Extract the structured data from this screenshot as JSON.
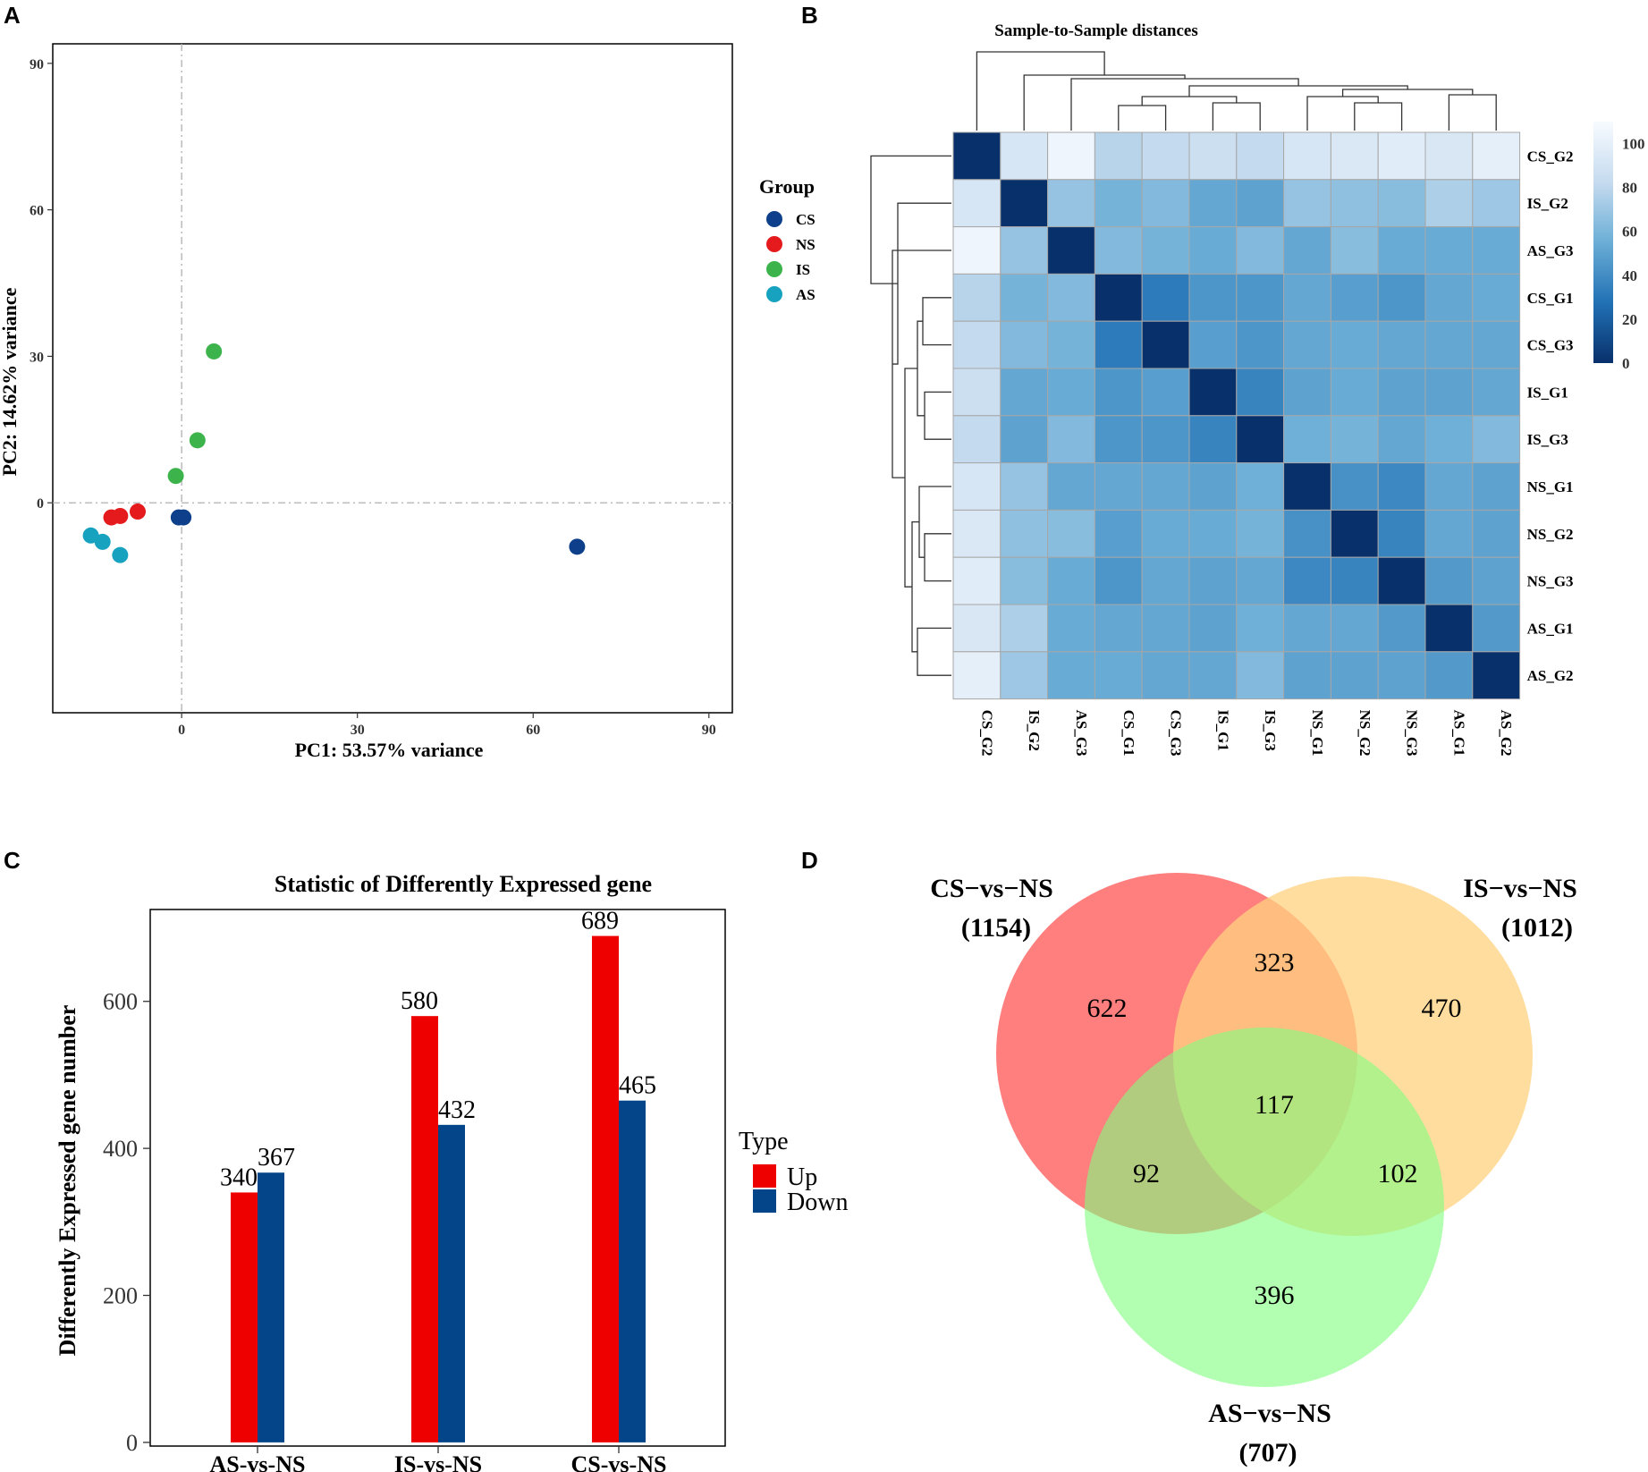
{
  "panels": {
    "a": "A",
    "b": "B",
    "c": "C",
    "d": "D"
  },
  "chart_data": [
    {
      "type": "scatter",
      "panel": "A",
      "title": "",
      "xlabel": "PC1: 53.57% variance",
      "ylabel": "PC2: 14.62% variance",
      "xlim": [
        -22,
        94
      ],
      "ylim": [
        -43,
        94
      ],
      "xticks": [
        0,
        30,
        60,
        90
      ],
      "yticks": [
        0,
        30,
        60,
        90
      ],
      "reference_lines": {
        "x": 0,
        "y": 0
      },
      "legend_title": "Group",
      "groups": [
        {
          "name": "CS",
          "color": "#0d3f8a",
          "points": [
            [
              -0.5,
              -3
            ],
            [
              0.3,
              -3
            ],
            [
              67.5,
              -9
            ]
          ]
        },
        {
          "name": "NS",
          "color": "#e41a1c",
          "points": [
            [
              -12,
              -3
            ],
            [
              -10.5,
              -2.7
            ],
            [
              -7.5,
              -1.8
            ]
          ]
        },
        {
          "name": "IS",
          "color": "#3cb44b",
          "points": [
            [
              5.5,
              31
            ],
            [
              2.7,
              12.8
            ],
            [
              -1,
              5.5
            ]
          ]
        },
        {
          "name": "AS",
          "color": "#17a2c0",
          "points": [
            [
              -15.5,
              -6.7
            ],
            [
              -13.5,
              -8
            ],
            [
              -10.5,
              -10.7
            ]
          ]
        }
      ]
    },
    {
      "type": "heatmap",
      "panel": "B",
      "title": "Sample-to-Sample distances",
      "labels": [
        "CS_G2",
        "IS_G2",
        "AS_G3",
        "CS_G1",
        "CS_G3",
        "IS_G1",
        "IS_G3",
        "NS_G1",
        "NS_G2",
        "NS_G3",
        "AS_G1",
        "AS_G2"
      ],
      "matrix": [
        [
          0,
          92,
          105,
          78,
          82,
          86,
          82,
          92,
          94,
          97,
          93,
          100
        ],
        [
          92,
          0,
          68,
          58,
          62,
          52,
          50,
          68,
          66,
          64,
          75,
          70
        ],
        [
          105,
          68,
          0,
          62,
          58,
          54,
          62,
          52,
          64,
          54,
          54,
          54
        ],
        [
          78,
          58,
          62,
          0,
          32,
          44,
          44,
          52,
          48,
          44,
          52,
          54
        ],
        [
          82,
          62,
          58,
          32,
          0,
          48,
          44,
          52,
          54,
          52,
          52,
          52
        ],
        [
          86,
          52,
          54,
          44,
          48,
          0,
          36,
          50,
          54,
          50,
          50,
          52
        ],
        [
          82,
          50,
          62,
          44,
          44,
          36,
          0,
          56,
          58,
          52,
          56,
          62
        ],
        [
          92,
          68,
          52,
          52,
          52,
          50,
          56,
          0,
          42,
          38,
          52,
          50
        ],
        [
          94,
          66,
          64,
          48,
          54,
          54,
          58,
          42,
          0,
          36,
          52,
          50
        ],
        [
          97,
          64,
          54,
          44,
          52,
          50,
          52,
          38,
          36,
          0,
          46,
          50
        ],
        [
          93,
          75,
          54,
          52,
          52,
          50,
          56,
          52,
          52,
          46,
          0,
          46
        ],
        [
          100,
          70,
          54,
          54,
          52,
          52,
          62,
          50,
          50,
          50,
          46,
          0
        ]
      ],
      "colorbar": {
        "min": 0,
        "max": 110,
        "ticks": [
          0,
          20,
          40,
          60,
          80,
          100
        ],
        "low_color": "#08306b",
        "high_color": "#f7fbff"
      }
    },
    {
      "type": "bar",
      "panel": "C",
      "title": "Statistic of Differently Expressed gene",
      "xlabel": "",
      "ylabel": "Differently Expressed gene number",
      "categories": [
        "AS-vs-NS",
        "IS-vs-NS",
        "CS-vs-NS"
      ],
      "series": [
        {
          "name": "Up",
          "color": "#ee0000",
          "values": [
            340,
            580,
            689
          ]
        },
        {
          "name": "Down",
          "color": "#034588",
          "values": [
            367,
            432,
            465
          ]
        }
      ],
      "ylim": [
        -5,
        725
      ],
      "yticks": [
        0,
        200,
        400,
        600
      ],
      "legend_title": "Type"
    },
    {
      "type": "venn",
      "panel": "D",
      "sets": [
        {
          "name": "CS−vs−NS",
          "total": "(1154)",
          "color": "#ff7f7f"
        },
        {
          "name": "IS−vs−NS",
          "total": "(1012)",
          "color": "#ffd27f"
        },
        {
          "name": "AS−vs−NS",
          "total": "(707)",
          "color": "#7fff7f"
        }
      ],
      "regions": {
        "CS_only": 622,
        "IS_only": 470,
        "AS_only": 396,
        "CS_IS": 323,
        "CS_AS": 92,
        "IS_AS": 102,
        "CS_IS_AS": 117
      }
    }
  ]
}
